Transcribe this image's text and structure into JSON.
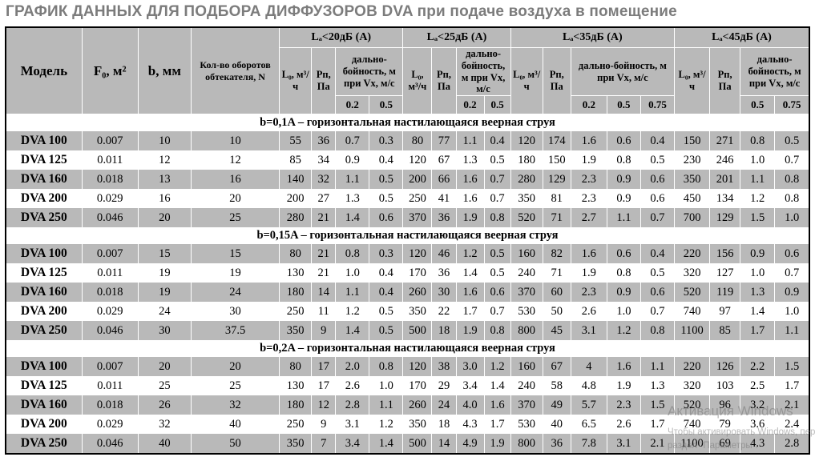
{
  "page_title": "ГРАФИК ДАННЫХ ДЛЯ ПОДБОРА ДИФФУЗОРОВ DVA при подаче воздуха в помещение",
  "watermark": {
    "line1": "Активация Windows",
    "line2": "Чтобы активировать Windows, перейдите в раздел \"Параметры\"."
  },
  "table": {
    "corner": {
      "model": "Модель",
      "f0": "F₀, м²",
      "b": "b, мм",
      "n": "Кол-во оборотов обтекателя, N"
    },
    "groups": [
      {
        "label": "Lₐ<20дБ (А)",
        "l0": "L₀, м³/ч",
        "pn": "Рп, Па",
        "range": "дально-бойность, м при Vх, м/с",
        "velocities": [
          "0.2",
          "0.5"
        ]
      },
      {
        "label": "Lₐ<25дБ (А)",
        "l0": "L₀, м³/ч",
        "pn": "Рп, Па",
        "range": "дально-бойность, м при Vх, м/с",
        "velocities": [
          "0.2",
          "0.5"
        ]
      },
      {
        "label": "Lₐ<35дБ (А)",
        "l0": "L₀, м³/ч",
        "pn": "Рп, Па",
        "range": "дально-бойность, м при Vх, м/с",
        "velocities": [
          "0.2",
          "0.5",
          "0.75"
        ]
      },
      {
        "label": "Lₐ<45дБ (А)",
        "l0": "L₀, м³/ч",
        "pn": "Рп, Па",
        "range": "дально-бойность, м при Vх, м/с",
        "velocities": [
          "0.5",
          "0.75"
        ]
      }
    ],
    "sections": [
      {
        "band": "b=0,1A  – горизонтальная настилающаяся веерная струя",
        "rows": [
          [
            "DVA 100",
            "0.007",
            "10",
            "10",
            "55",
            "36",
            "0.7",
            "0.3",
            "80",
            "77",
            "1.1",
            "0.4",
            "120",
            "174",
            "1.6",
            "0.6",
            "0.4",
            "150",
            "271",
            "0.8",
            "0.5"
          ],
          [
            "DVA 125",
            "0.011",
            "12",
            "12",
            "85",
            "34",
            "0.9",
            "0.4",
            "120",
            "67",
            "1.3",
            "0.5",
            "180",
            "150",
            "1.9",
            "0.8",
            "0.5",
            "230",
            "246",
            "1.0",
            "0.7"
          ],
          [
            "DVA 160",
            "0.018",
            "13",
            "16",
            "140",
            "32",
            "1.1",
            "0.5",
            "200",
            "66",
            "1.6",
            "0.7",
            "280",
            "129",
            "2.3",
            "0.9",
            "0.6",
            "350",
            "201",
            "1.1",
            "0.8"
          ],
          [
            "DVA 200",
            "0.029",
            "16",
            "20",
            "200",
            "27",
            "1.3",
            "0.5",
            "250",
            "41",
            "1.6",
            "0.7",
            "350",
            "81",
            "2.3",
            "0.9",
            "0.6",
            "450",
            "134",
            "1.2",
            "0.8"
          ],
          [
            "DVA 250",
            "0.046",
            "20",
            "25",
            "280",
            "21",
            "1.4",
            "0.6",
            "370",
            "36",
            "1.9",
            "0.8",
            "520",
            "71",
            "2.7",
            "1.1",
            "0.7",
            "700",
            "129",
            "1.5",
            "1.0"
          ]
        ]
      },
      {
        "band": "b=0,15A  – горизонтальная настилающаяся веерная струя",
        "rows": [
          [
            "DVA 100",
            "0.007",
            "15",
            "15",
            "80",
            "21",
            "0.8",
            "0.3",
            "120",
            "46",
            "1.2",
            "0.5",
            "160",
            "82",
            "1.6",
            "0.6",
            "0.4",
            "220",
            "156",
            "0.9",
            "0.6"
          ],
          [
            "DVA 125",
            "0.011",
            "19",
            "19",
            "130",
            "21",
            "1.0",
            "0.4",
            "170",
            "36",
            "1.4",
            "0.5",
            "240",
            "71",
            "1.9",
            "0.8",
            "0.5",
            "320",
            "127",
            "1.0",
            "0.7"
          ],
          [
            "DVA 160",
            "0.018",
            "19",
            "24",
            "180",
            "14",
            "1.1",
            "0.4",
            "260",
            "30",
            "1.6",
            "0.6",
            "370",
            "60",
            "2.3",
            "0.9",
            "0.6",
            "520",
            "119",
            "1.3",
            "0.9"
          ],
          [
            "DVA 200",
            "0.029",
            "24",
            "30",
            "250",
            "11",
            "1.2",
            "0.5",
            "350",
            "22",
            "1.7",
            "0.7",
            "530",
            "50",
            "2.6",
            "1.0",
            "0.7",
            "740",
            "97",
            "1.4",
            "1.0"
          ],
          [
            "DVA 250",
            "0.046",
            "30",
            "37.5",
            "350",
            "9",
            "1.4",
            "0.5",
            "500",
            "18",
            "1.9",
            "0.8",
            "800",
            "45",
            "3.1",
            "1.2",
            "0.8",
            "1100",
            "85",
            "1.7",
            "1.1"
          ]
        ]
      },
      {
        "band": "b=0,2A  – горизонтальная настилающаяся веерная струя",
        "rows": [
          [
            "DVA 100",
            "0.007",
            "20",
            "20",
            "80",
            "17",
            "2.0",
            "0.8",
            "120",
            "38",
            "3.0",
            "1.2",
            "160",
            "67",
            "4",
            "1.6",
            "1.1",
            "220",
            "126",
            "2.2",
            "1.5"
          ],
          [
            "DVA 125",
            "0.011",
            "25",
            "25",
            "130",
            "17",
            "2.6",
            "1.0",
            "170",
            "29",
            "3.4",
            "1.4",
            "240",
            "58",
            "4.8",
            "1.9",
            "1.3",
            "320",
            "103",
            "2.5",
            "1.7"
          ],
          [
            "DVA 160",
            "0.018",
            "26",
            "32",
            "180",
            "12",
            "2.8",
            "1.1",
            "260",
            "24",
            "4.0",
            "1.6",
            "370",
            "49",
            "5.7",
            "2.3",
            "1.5",
            "520",
            "96",
            "3.2",
            "2.1"
          ],
          [
            "DVA 200",
            "0.029",
            "32",
            "40",
            "250",
            "9",
            "3.1",
            "1.2",
            "350",
            "18",
            "4.3",
            "1.7",
            "530",
            "40",
            "6.5",
            "2.6",
            "1.7",
            "740",
            "79",
            "3.6",
            "2.4"
          ],
          [
            "DVA 250",
            "0.046",
            "40",
            "50",
            "350",
            "7",
            "3.4",
            "1.4",
            "500",
            "14",
            "4.9",
            "1.9",
            "800",
            "36",
            "7.8",
            "3.1",
            "2.1",
            "1100",
            "69",
            "4.3",
            "2.8"
          ]
        ]
      }
    ]
  }
}
